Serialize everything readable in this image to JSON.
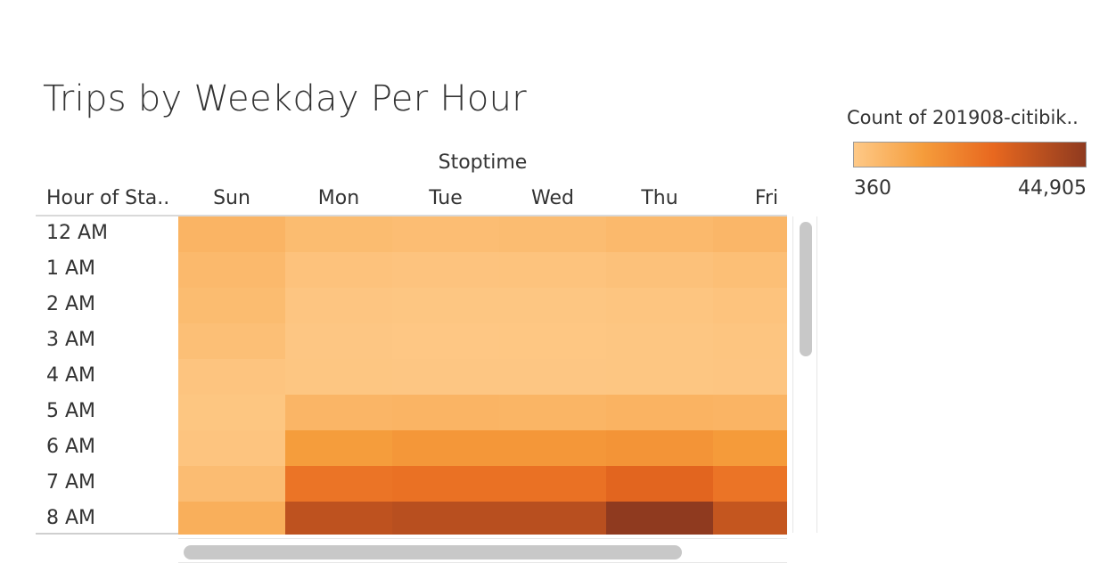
{
  "chart_data": {
    "type": "heatmap",
    "title": "Trips by Weekday Per Hour",
    "column_axis_title": "Stoptime",
    "row_header": "Hour of Sta..",
    "columns": [
      "Sun",
      "Mon",
      "Tue",
      "Wed",
      "Thu",
      "Fri"
    ],
    "rows": [
      "12 AM",
      "1 AM",
      "2 AM",
      "3 AM",
      "4 AM",
      "5 AM",
      "6 AM",
      "7 AM",
      "8 AM"
    ],
    "values": [
      [
        7200,
        4800,
        4300,
        4600,
        5600,
        6500
      ],
      [
        5600,
        2600,
        2200,
        2400,
        2900,
        3700
      ],
      [
        4800,
        1600,
        1300,
        1400,
        1700,
        2300
      ],
      [
        3700,
        1200,
        1000,
        1100,
        1300,
        1700
      ],
      [
        2000,
        1300,
        1200,
        1200,
        1400,
        1600
      ],
      [
        1500,
        6800,
        7200,
        7100,
        7600,
        7200
      ],
      [
        2000,
        15000,
        16500,
        16500,
        17500,
        15500
      ],
      [
        4500,
        26500,
        27500,
        27500,
        31000,
        26500
      ],
      [
        9000,
        37000,
        38000,
        38000,
        44905,
        36000
      ]
    ],
    "color_legend": {
      "title": "Count of 201908-citibik..",
      "min": 360,
      "max": 44905,
      "min_label": "360",
      "max_label": "44,905",
      "colors": [
        "#fec987",
        "#f59c3b",
        "#e8681f",
        "#8f3a1f"
      ]
    },
    "scrollbars": {
      "vertical": true,
      "horizontal": true
    }
  }
}
